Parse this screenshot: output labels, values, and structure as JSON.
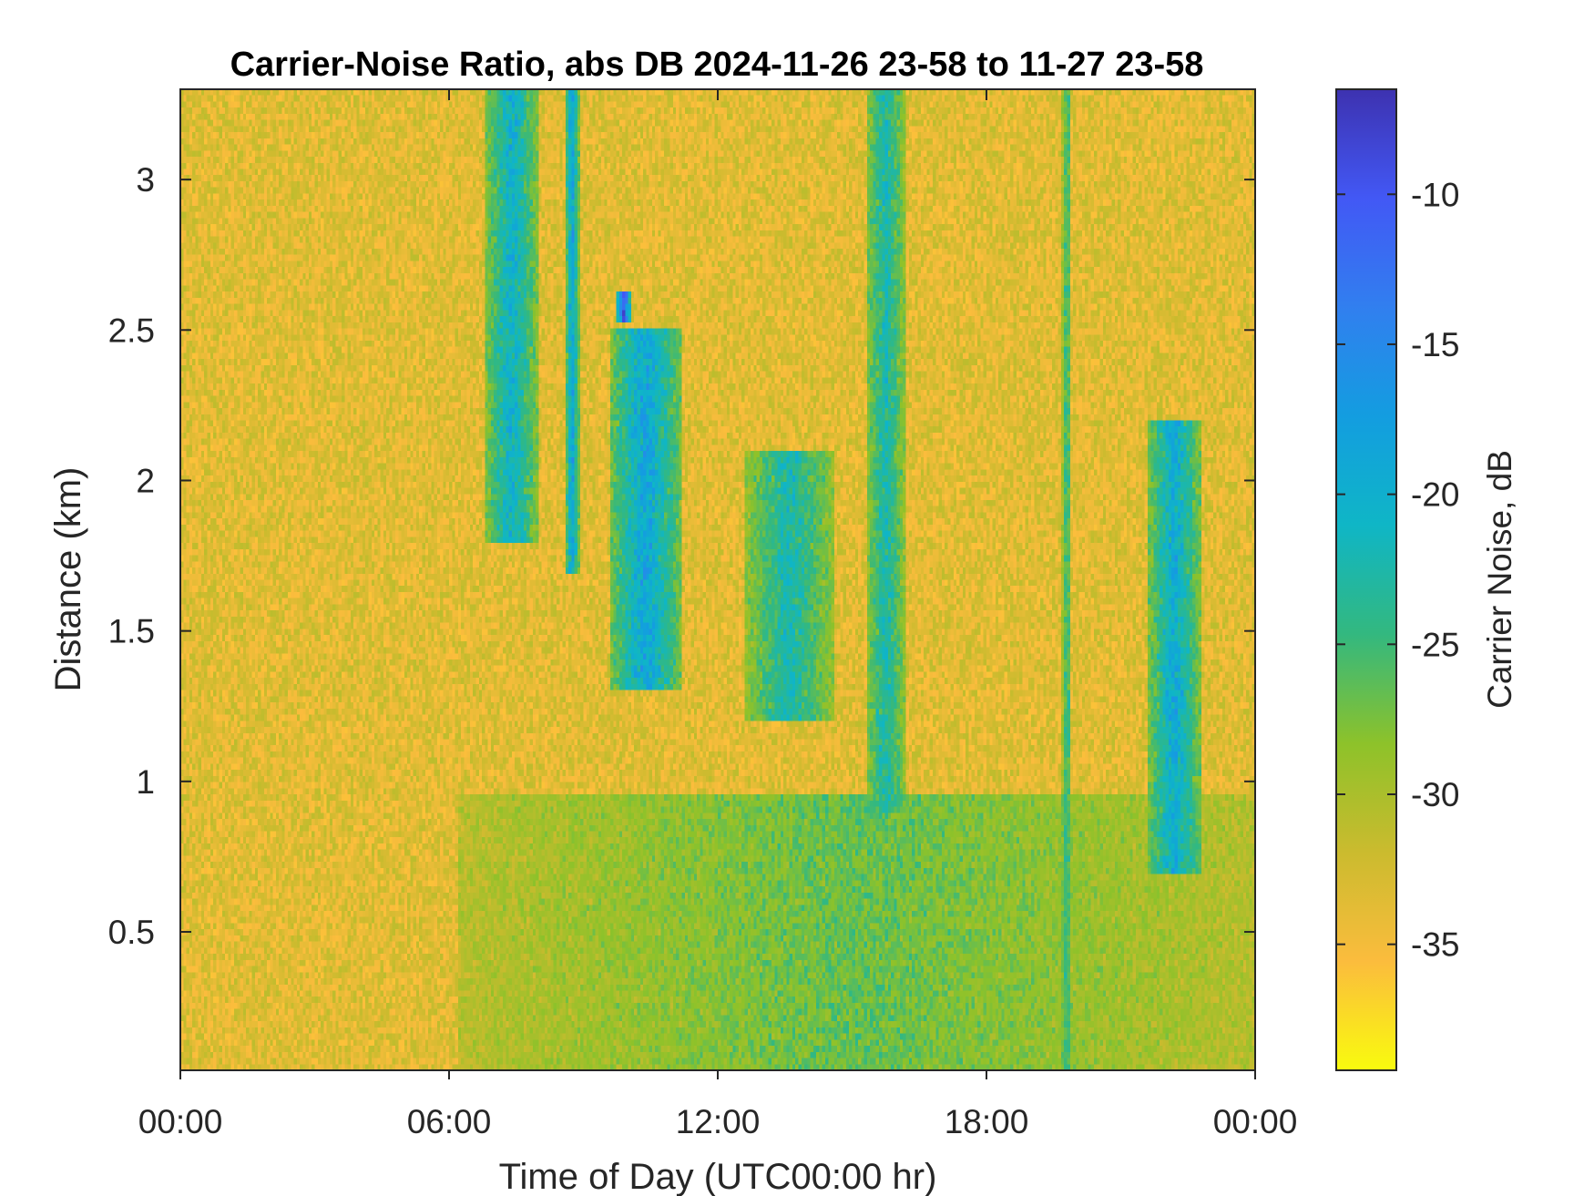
{
  "chart_data": {
    "type": "heatmap",
    "title": "Carrier-Noise Ratio, abs DB 2024-11-26 23-58 to 11-27 23-58",
    "xlabel": "Time of Day (UTC00:00 hr)",
    "ylabel": "Distance (km)",
    "x_unit": "hours",
    "xlim": [
      0,
      24
    ],
    "ylim": [
      0.04,
      3.3
    ],
    "x_ticks": [
      0,
      6,
      12,
      18,
      24
    ],
    "x_tick_labels": [
      "00:00",
      "06:00",
      "12:00",
      "18:00",
      "00:00"
    ],
    "y_ticks": [
      0.5,
      1,
      1.5,
      2,
      2.5,
      3
    ],
    "y_tick_labels": [
      "0.5",
      "1",
      "1.5",
      "2",
      "2.5",
      "3"
    ],
    "colorbar": {
      "label": "Carrier Noise, dB",
      "clim": [
        -39.2,
        -6.5
      ],
      "ticks": [
        -35,
        -30,
        -25,
        -20,
        -15,
        -10
      ],
      "tick_labels": [
        "-35",
        "-30",
        "-25",
        "-20",
        "-15",
        "-10"
      ],
      "colormap": "parula-reversed",
      "colors": [
        "#f9fb0e",
        "#fbbc3d",
        "#cbbb2e",
        "#8dc22a",
        "#33b87f",
        "#0fb6c6",
        "#139de0",
        "#317fef",
        "#4258f5",
        "#3d32b0"
      ]
    },
    "background_value": -33.5,
    "grid": false,
    "features": [
      {
        "name": "morning cloud streak",
        "x": [
          6.8,
          8.0
        ],
        "y": [
          1.8,
          3.3
        ],
        "value": -19
      },
      {
        "name": "narrow streak",
        "x": [
          8.6,
          8.9
        ],
        "y": [
          1.7,
          3.3
        ],
        "value": -17
      },
      {
        "name": "strong spot",
        "x": [
          9.75,
          10.05
        ],
        "y": [
          2.52,
          2.62
        ],
        "value": -8
      },
      {
        "name": "descending band",
        "x": [
          9.6,
          11.2
        ],
        "y": [
          1.3,
          2.5
        ],
        "value": -17
      },
      {
        "name": "midday band",
        "x": [
          12.6,
          14.6
        ],
        "y": [
          1.2,
          2.1
        ],
        "value": -21
      },
      {
        "name": "afternoon streak",
        "x": [
          15.3,
          16.2
        ],
        "y": [
          0.9,
          3.3
        ],
        "value": -21
      },
      {
        "name": "evening streak",
        "x": [
          19.7,
          19.9
        ],
        "y": [
          0.04,
          3.3
        ],
        "value": -23
      },
      {
        "name": "late band",
        "x": [
          21.6,
          22.8
        ],
        "y": [
          0.7,
          2.2
        ],
        "value": -18
      },
      {
        "name": "low-level layer",
        "x": [
          6.2,
          24
        ],
        "y": [
          0.04,
          0.95
        ],
        "value": -26
      }
    ]
  }
}
